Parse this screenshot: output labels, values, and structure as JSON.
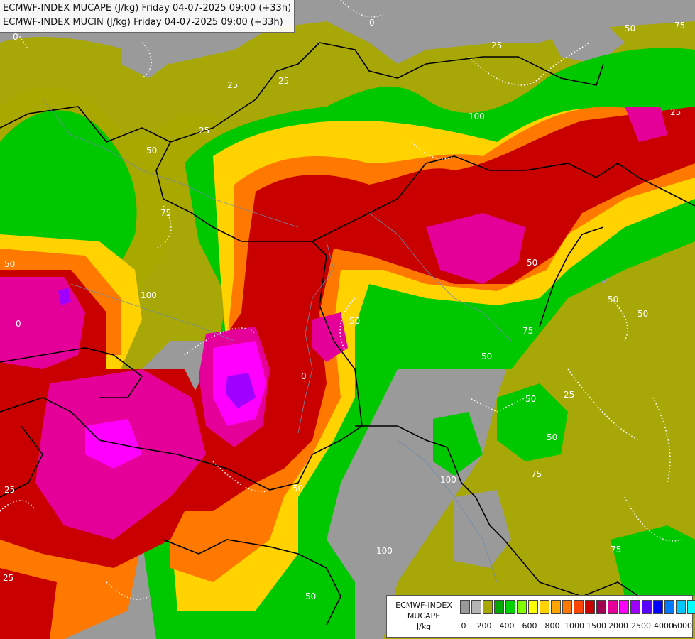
{
  "title": {
    "line1": "ECMWF-INDEX MUCAPE (J/kg) Friday 04-07-2025 09:00 (+33h)",
    "line2": "ECMWF-INDEX MUCIN (J/kg) Friday 04-07-2025 09:00 (+33h)"
  },
  "legend": {
    "line1": "ECMWF-INDEX",
    "line2": "MUCAPE",
    "line3": "J/kg",
    "swatch_colors": [
      "#999999",
      "#b5b5b5",
      "#a8a800",
      "#00a800",
      "#00d200",
      "#7fff00",
      "#ffff00",
      "#ffd200",
      "#ffa500",
      "#ff7800",
      "#ff4500",
      "#c80000",
      "#a00050",
      "#e6009a",
      "#ff00ff",
      "#a000ff",
      "#5a00ff",
      "#0000ff",
      "#0078ff",
      "#00c8ff",
      "#00ffff",
      "#ffffff"
    ],
    "tick_labels": [
      "0",
      "200",
      "400",
      "600",
      "800",
      "1000",
      "1500",
      "2000",
      "2500",
      "4000",
      "6000"
    ]
  },
  "contour_labels": [
    "0",
    "25",
    "50",
    "75",
    "100"
  ],
  "colors": {
    "background": "#9a9a9a",
    "olive": "#a8a800",
    "green": "#00c800",
    "red": "#c80000",
    "magenta": "#e6009a"
  }
}
